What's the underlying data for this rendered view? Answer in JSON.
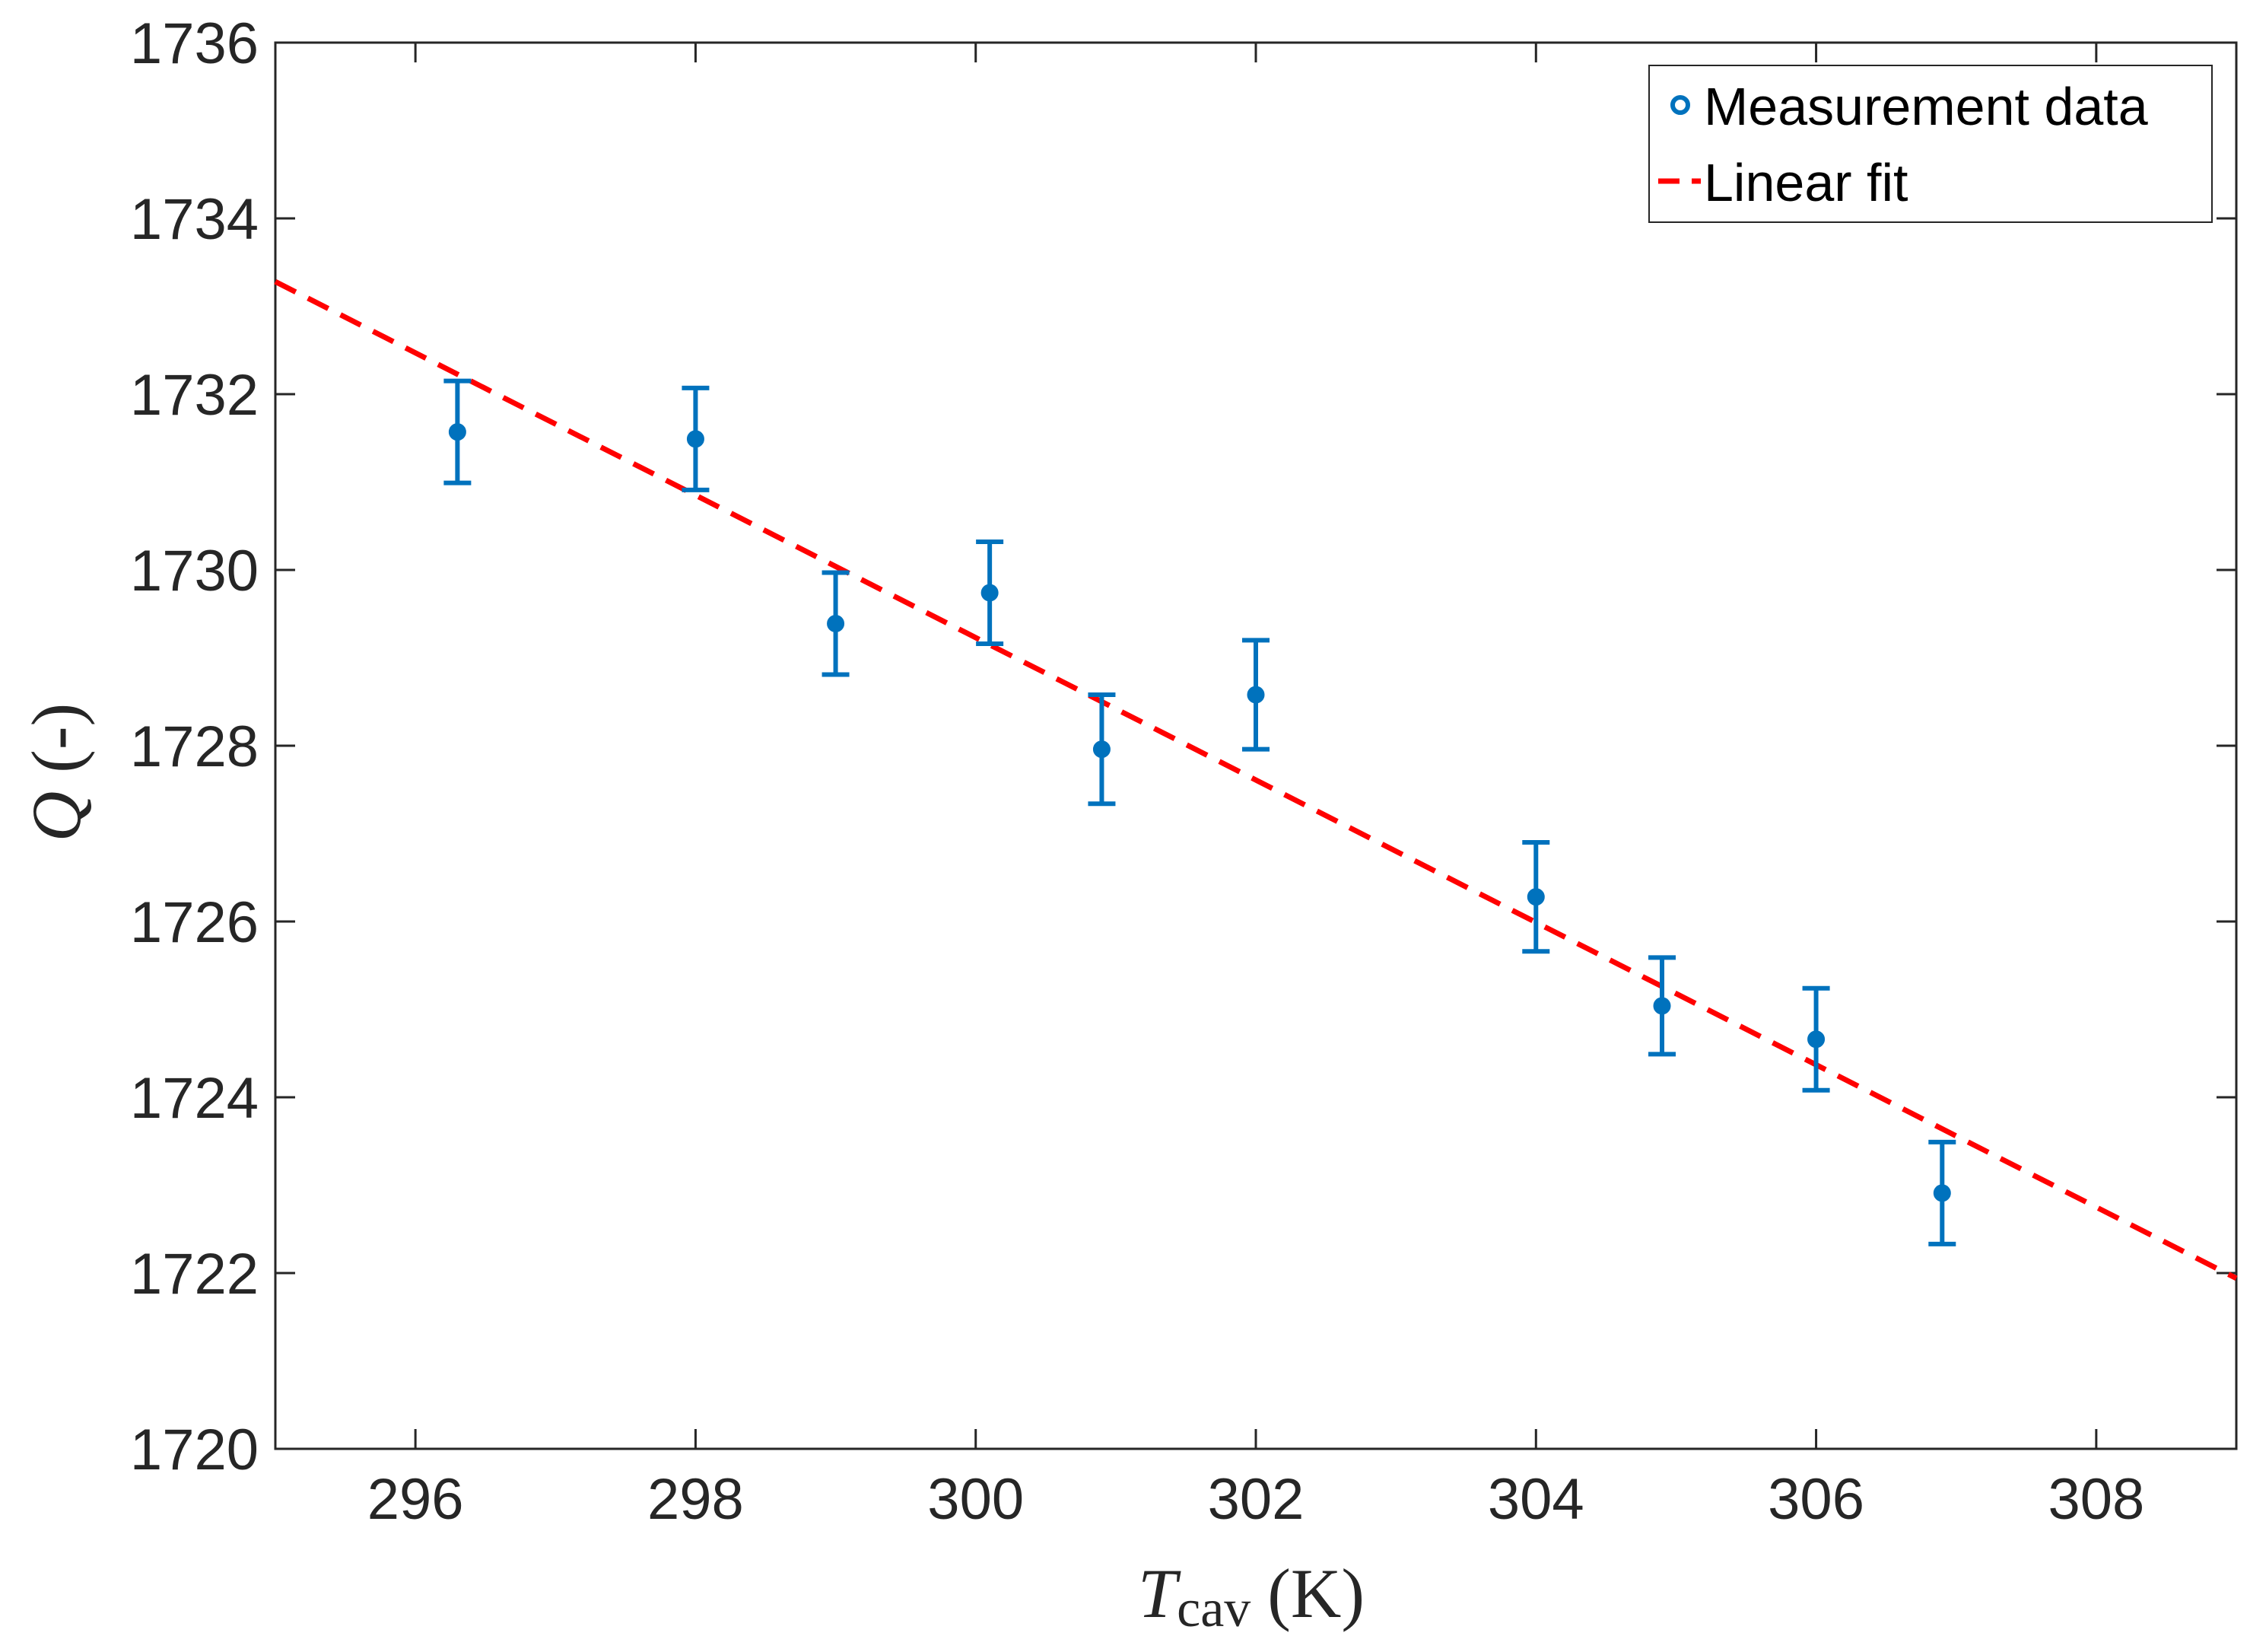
{
  "chart_data": {
    "type": "scatter",
    "title": "",
    "xlabel": {
      "symbol": "T",
      "subscript": "cav",
      "unit": "(K)"
    },
    "ylabel": {
      "symbol": "Q",
      "unit": "(-)"
    },
    "xlim": [
      295,
      309
    ],
    "ylim": [
      1720,
      1736
    ],
    "xticks": [
      296,
      298,
      300,
      302,
      304,
      306,
      308
    ],
    "yticks": [
      1720,
      1722,
      1724,
      1726,
      1728,
      1730,
      1732,
      1734,
      1736
    ],
    "grid": false,
    "legend": {
      "placement": "top-right",
      "entries": [
        {
          "label": "Measurement data",
          "marker": "circle",
          "color": "#0072BD"
        },
        {
          "label": "Linear fit",
          "line": "dashed",
          "color": "#FF0000"
        }
      ]
    },
    "series": [
      {
        "name": "Measurement data",
        "kind": "errorbar",
        "color": "#0072BD",
        "x": [
          296.3,
          298.0,
          299.0,
          300.1,
          300.9,
          302.0,
          304.0,
          304.9,
          306.0,
          306.9
        ],
        "y": [
          1731.57,
          1731.49,
          1729.39,
          1729.74,
          1727.96,
          1728.58,
          1726.28,
          1725.04,
          1724.66,
          1722.91
        ],
        "err": [
          0.58,
          0.58,
          0.58,
          0.58,
          0.62,
          0.62,
          0.62,
          0.55,
          0.58,
          0.58
        ]
      },
      {
        "name": "Linear fit",
        "kind": "line",
        "style": "dashed",
        "color": "#FF0000",
        "x": [
          295,
          309
        ],
        "y": [
          1733.28,
          1721.94
        ]
      }
    ]
  }
}
